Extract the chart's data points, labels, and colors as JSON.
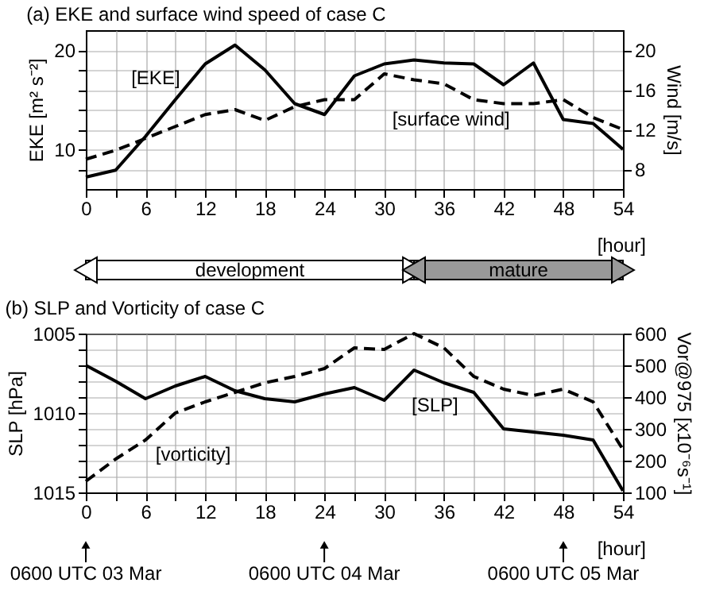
{
  "chart_data": [
    {
      "type": "line",
      "title": "(a) EKE and surface wind speed of case C",
      "xlabel": "[hour]",
      "ylabel": "EKE [m² s⁻²]",
      "y2label": "Wind [m/s]",
      "x": [
        0,
        3,
        6,
        9,
        12,
        15,
        18,
        21,
        24,
        27,
        30,
        33,
        36,
        39,
        42,
        45,
        48,
        51,
        54
      ],
      "series": [
        {
          "name": "[EKE]",
          "color": "#000000",
          "line_style": "solid",
          "values": [
            7.2,
            7.9,
            11.3,
            15.0,
            18.6,
            20.5,
            18.0,
            14.6,
            13.5,
            17.4,
            18.6,
            19.0,
            18.7,
            18.6,
            16.5,
            18.7,
            13.0,
            12.6,
            10.0
          ]
        },
        {
          "name": "[surface wind]",
          "color": "#000000",
          "line_style": "dashed",
          "axis": "y2",
          "values": [
            9.0,
            9.9,
            11.1,
            12.3,
            13.5,
            14.0,
            12.9,
            14.3,
            15.0,
            15.0,
            17.6,
            17.0,
            16.6,
            15.0,
            14.6,
            14.6,
            15.0,
            13.2,
            12.0
          ]
        }
      ],
      "xlim": [
        0,
        54
      ],
      "xticks": [
        0,
        {
          "value": 3,
          "label": null
        },
        6,
        {
          "value": 9,
          "label": null
        },
        12,
        {
          "value": 15,
          "label": null
        },
        18,
        {
          "value": 21,
          "label": null
        },
        24,
        {
          "value": 27,
          "label": null
        },
        30,
        {
          "value": 33,
          "label": null
        },
        36,
        {
          "value": 39,
          "label": null
        },
        42,
        {
          "value": 45,
          "label": null
        },
        48,
        {
          "value": 51,
          "label": null
        },
        54
      ],
      "ylim": [
        6,
        22
      ],
      "yticks": [
        {
          "value": 8,
          "label": null
        },
        10,
        {
          "value": 12,
          "label": null
        },
        {
          "value": 14,
          "label": null
        },
        {
          "value": 16,
          "label": null
        },
        {
          "value": 18,
          "label": null
        },
        20
      ],
      "y2lim": [
        6,
        22
      ],
      "y2ticks": [
        8,
        12,
        16,
        20
      ],
      "annotations": [
        "development",
        "mature"
      ],
      "grid": true
    },
    {
      "type": "line",
      "title": "(b) SLP and Vorticity of case C",
      "xlabel": "[hour]",
      "ylabel": "SLP [hPa]",
      "y2label": "Vor@975 [x10⁻⁶s⁻¹]",
      "x": [
        0,
        3,
        6,
        9,
        12,
        15,
        18,
        21,
        24,
        27,
        30,
        33,
        36,
        39,
        42,
        45,
        48,
        51,
        54
      ],
      "series": [
        {
          "name": "[SLP]",
          "color": "#000000",
          "line_style": "solid",
          "values": [
            1007.0,
            1008.0,
            1009.1,
            1008.3,
            1007.7,
            1008.6,
            1009.1,
            1009.3,
            1008.8,
            1008.4,
            1009.2,
            1007.3,
            1008.1,
            1008.7,
            1011.0,
            1011.2,
            1011.4,
            1011.7,
            1014.9
          ]
        },
        {
          "name": "[vorticity]",
          "color": "#000000",
          "line_style": "dashed",
          "axis": "y2",
          "values": [
            135,
            205,
            265,
            350,
            385,
            415,
            445,
            465,
            490,
            555,
            550,
            600,
            555,
            465,
            425,
            405,
            425,
            385,
            235
          ]
        }
      ],
      "xlim": [
        0,
        54
      ],
      "xticks": [
        0,
        {
          "value": 3,
          "label": null
        },
        6,
        {
          "value": 9,
          "label": null
        },
        12,
        {
          "value": 15,
          "label": null
        },
        18,
        {
          "value": 21,
          "label": null
        },
        24,
        {
          "value": 27,
          "label": null
        },
        30,
        {
          "value": 33,
          "label": null
        },
        36,
        {
          "value": 39,
          "label": null
        },
        42,
        {
          "value": 45,
          "label": null
        },
        48,
        {
          "value": 51,
          "label": null
        },
        54
      ],
      "ylim": [
        1015,
        1005
      ],
      "yticks": [
        1005,
        {
          "value": 1006,
          "label": null
        },
        {
          "value": 1007,
          "label": null
        },
        {
          "value": 1008,
          "label": null
        },
        {
          "value": 1009,
          "label": null
        },
        1010,
        {
          "value": 1011,
          "label": null
        },
        {
          "value": 1012,
          "label": null
        },
        {
          "value": 1013,
          "label": null
        },
        {
          "value": 1014,
          "label": null
        },
        1015
      ],
      "y2lim": [
        100,
        600
      ],
      "y2ticks": [
        100,
        200,
        300,
        400,
        500,
        600
      ],
      "annotations": [
        "0600 UTC 03 Mar",
        "0600 UTC 04 Mar",
        "0600 UTC 05 Mar"
      ],
      "grid": true
    }
  ]
}
